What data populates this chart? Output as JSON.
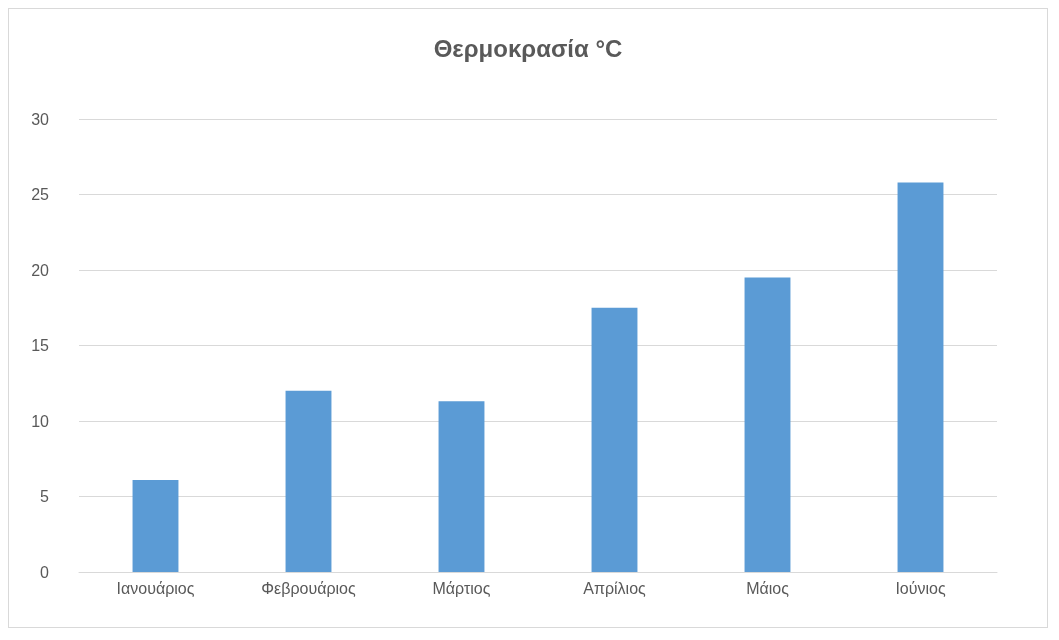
{
  "chart_data": {
    "type": "bar",
    "title": "Θερμοκρασία °C",
    "categories": [
      "Ιανουάριος",
      "Φεβρουάριος",
      "Μάρτιος",
      "Απρίλιος",
      "Μάιος",
      "Ιούνιος"
    ],
    "values": [
      6.1,
      12,
      11.3,
      17.5,
      19.5,
      25.8
    ],
    "color": "#5b9bd5",
    "ylim": [
      0,
      30
    ],
    "yticks": [
      0,
      5,
      10,
      15,
      20,
      25,
      30
    ],
    "grid": "y"
  }
}
